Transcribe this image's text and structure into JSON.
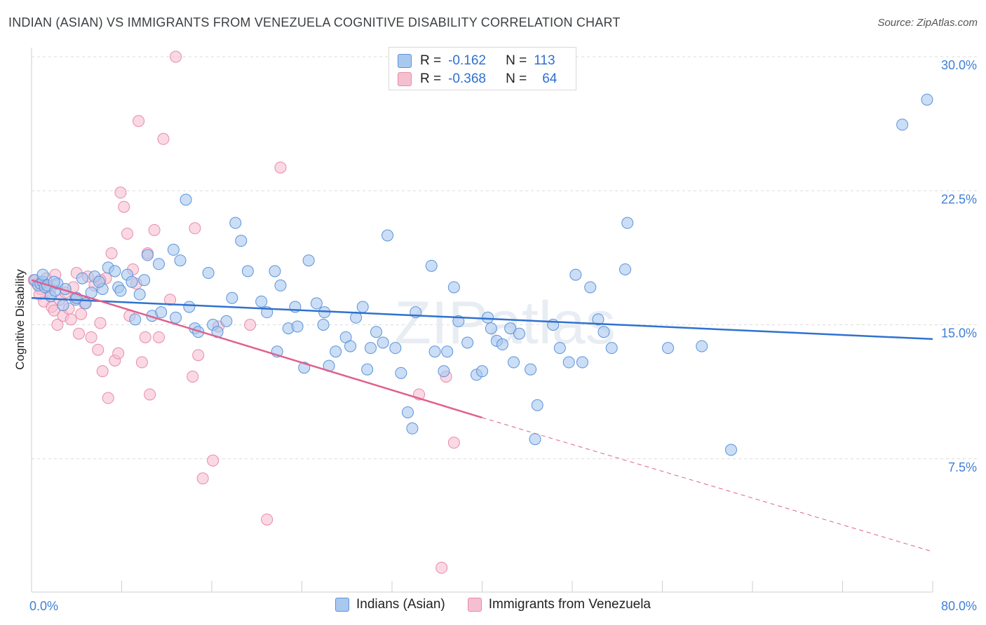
{
  "title": "INDIAN (ASIAN) VS IMMIGRANTS FROM VENEZUELA COGNITIVE DISABILITY CORRELATION CHART",
  "source": "Source: ZipAtlas.com",
  "watermark": "ZIPatlas",
  "legend_top": {
    "rows": [
      {
        "r_label": "R =",
        "r_value": "-0.162",
        "n_label": "N =",
        "n_value": "113"
      },
      {
        "r_label": "R =",
        "r_value": "-0.368",
        "n_label": "N =",
        "n_value": "64"
      }
    ]
  },
  "colors": {
    "blue_fill": "#a9c8ef",
    "blue_stroke": "#5b93db",
    "blue_line": "#2f72cf",
    "pink_fill": "#f6bfd0",
    "pink_stroke": "#e88aaa",
    "pink_line": "#e0608c",
    "grid": "#dcdcdc",
    "tick_text": "#3f7fd6"
  },
  "chart_data": {
    "type": "scatter",
    "title": "INDIAN (ASIAN) VS IMMIGRANTS FROM VENEZUELA COGNITIVE DISABILITY CORRELATION CHART",
    "xlabel": "",
    "ylabel": "Cognitive Disability",
    "xlim": [
      0,
      80
    ],
    "ylim": [
      0,
      30
    ],
    "x_tick_labels": [
      "0.0%",
      "80.0%"
    ],
    "y_ticks": [
      7.5,
      15.0,
      22.5,
      30.0
    ],
    "y_tick_labels": [
      "7.5%",
      "15.0%",
      "22.5%",
      "30.0%"
    ],
    "legend_position": "top-center",
    "series": [
      {
        "name": "Indians (Asian)",
        "r": -0.162,
        "n": 113,
        "trend": {
          "x": [
            0,
            80
          ],
          "y": [
            16.5,
            14.2
          ],
          "dashed_beyond": null
        },
        "points": [
          [
            0.3,
            17.5
          ],
          [
            0.6,
            17.2
          ],
          [
            0.8,
            17.3
          ],
          [
            1.0,
            17.4
          ],
          [
            1.2,
            17.1
          ],
          [
            1.4,
            17.2
          ],
          [
            1.7,
            16.6
          ],
          [
            2.1,
            16.9
          ],
          [
            2.3,
            17.3
          ],
          [
            2.8,
            16.1
          ],
          [
            3.0,
            17.0
          ],
          [
            3.9,
            16.4
          ],
          [
            4.5,
            17.6
          ],
          [
            4.8,
            16.2
          ],
          [
            5.3,
            16.8
          ],
          [
            5.6,
            17.7
          ],
          [
            6.3,
            17.0
          ],
          [
            6.8,
            18.2
          ],
          [
            7.4,
            18.0
          ],
          [
            7.7,
            17.1
          ],
          [
            7.9,
            16.9
          ],
          [
            8.5,
            17.8
          ],
          [
            8.9,
            17.4
          ],
          [
            9.6,
            16.7
          ],
          [
            10.0,
            17.5
          ],
          [
            10.3,
            18.9
          ],
          [
            9.2,
            15.3
          ],
          [
            10.7,
            15.5
          ],
          [
            11.3,
            18.4
          ],
          [
            11.5,
            15.7
          ],
          [
            12.8,
            15.4
          ],
          [
            13.2,
            18.6
          ],
          [
            12.6,
            19.2
          ],
          [
            13.7,
            22.0
          ],
          [
            14.5,
            14.8
          ],
          [
            14.8,
            14.6
          ],
          [
            16.1,
            15.0
          ],
          [
            16.5,
            14.6
          ],
          [
            17.3,
            15.2
          ],
          [
            17.8,
            16.5
          ],
          [
            18.1,
            20.7
          ],
          [
            18.6,
            19.7
          ],
          [
            19.2,
            18.0
          ],
          [
            20.4,
            16.3
          ],
          [
            20.9,
            15.7
          ],
          [
            21.6,
            18.0
          ],
          [
            22.1,
            17.2
          ],
          [
            21.8,
            13.5
          ],
          [
            22.8,
            14.8
          ],
          [
            23.6,
            14.9
          ],
          [
            24.2,
            12.6
          ],
          [
            23.4,
            16.0
          ],
          [
            24.6,
            18.6
          ],
          [
            25.3,
            16.2
          ],
          [
            25.9,
            15.0
          ],
          [
            26.4,
            12.7
          ],
          [
            27.0,
            13.5
          ],
          [
            27.9,
            14.3
          ],
          [
            28.3,
            13.8
          ],
          [
            29.4,
            16.0
          ],
          [
            28.8,
            15.4
          ],
          [
            30.1,
            13.7
          ],
          [
            29.8,
            12.5
          ],
          [
            30.6,
            14.6
          ],
          [
            31.2,
            14.0
          ],
          [
            31.6,
            20.0
          ],
          [
            32.3,
            13.7
          ],
          [
            32.8,
            12.3
          ],
          [
            33.4,
            10.1
          ],
          [
            33.8,
            9.2
          ],
          [
            34.1,
            15.7
          ],
          [
            35.5,
            18.3
          ],
          [
            35.8,
            13.5
          ],
          [
            36.6,
            12.4
          ],
          [
            36.9,
            13.5
          ],
          [
            37.5,
            17.1
          ],
          [
            37.9,
            15.2
          ],
          [
            38.7,
            14.0
          ],
          [
            39.5,
            12.2
          ],
          [
            40.0,
            12.4
          ],
          [
            40.8,
            14.8
          ],
          [
            41.3,
            14.1
          ],
          [
            41.8,
            13.9
          ],
          [
            42.5,
            14.8
          ],
          [
            42.8,
            12.9
          ],
          [
            43.3,
            14.5
          ],
          [
            44.3,
            12.5
          ],
          [
            44.9,
            10.5
          ],
          [
            44.7,
            8.6
          ],
          [
            46.3,
            15.0
          ],
          [
            46.9,
            13.7
          ],
          [
            47.7,
            12.9
          ],
          [
            48.3,
            17.8
          ],
          [
            48.9,
            12.9
          ],
          [
            49.6,
            17.1
          ],
          [
            50.3,
            15.3
          ],
          [
            50.8,
            14.6
          ],
          [
            51.5,
            13.7
          ],
          [
            52.7,
            18.1
          ],
          [
            52.9,
            20.7
          ],
          [
            56.5,
            13.7
          ],
          [
            59.5,
            13.8
          ],
          [
            62.1,
            8.0
          ],
          [
            77.3,
            26.2
          ],
          [
            79.5,
            27.6
          ],
          [
            1.0,
            17.8
          ],
          [
            2.0,
            17.4
          ],
          [
            4.0,
            16.5
          ],
          [
            6.0,
            17.4
          ],
          [
            14.0,
            16.0
          ],
          [
            26.0,
            15.7
          ],
          [
            15.7,
            17.9
          ],
          [
            40.5,
            15.4
          ]
        ]
      },
      {
        "name": "Immigrants from Venezuela",
        "r": -0.368,
        "n": 64,
        "trend": {
          "x": [
            0,
            40
          ],
          "y": [
            17.5,
            9.8
          ],
          "dashed_beyond": [
            80,
            2.3
          ]
        },
        "points": [
          [
            0.2,
            17.5
          ],
          [
            0.5,
            17.3
          ],
          [
            0.8,
            17.0
          ],
          [
            1.1,
            16.3
          ],
          [
            1.3,
            17.6
          ],
          [
            1.6,
            16.9
          ],
          [
            1.8,
            16.0
          ],
          [
            2.0,
            15.8
          ],
          [
            2.3,
            15.0
          ],
          [
            2.5,
            16.4
          ],
          [
            2.8,
            15.5
          ],
          [
            3.0,
            16.8
          ],
          [
            3.3,
            15.9
          ],
          [
            3.5,
            15.3
          ],
          [
            3.7,
            17.1
          ],
          [
            3.9,
            16.5
          ],
          [
            4.2,
            14.5
          ],
          [
            4.4,
            15.6
          ],
          [
            4.7,
            16.2
          ],
          [
            5.0,
            17.7
          ],
          [
            5.3,
            14.3
          ],
          [
            5.6,
            17.2
          ],
          [
            5.9,
            13.6
          ],
          [
            6.1,
            15.1
          ],
          [
            6.3,
            12.4
          ],
          [
            6.6,
            17.6
          ],
          [
            6.8,
            10.9
          ],
          [
            7.1,
            19.0
          ],
          [
            7.4,
            13.0
          ],
          [
            7.7,
            13.4
          ],
          [
            7.9,
            22.4
          ],
          [
            8.2,
            21.6
          ],
          [
            8.5,
            20.1
          ],
          [
            8.7,
            15.5
          ],
          [
            9.0,
            18.1
          ],
          [
            9.3,
            17.3
          ],
          [
            9.5,
            26.4
          ],
          [
            9.8,
            12.9
          ],
          [
            10.1,
            14.3
          ],
          [
            10.3,
            19.0
          ],
          [
            10.5,
            11.1
          ],
          [
            10.9,
            20.3
          ],
          [
            11.3,
            14.3
          ],
          [
            11.7,
            25.4
          ],
          [
            12.8,
            30.0
          ],
          [
            14.3,
            12.1
          ],
          [
            14.5,
            20.4
          ],
          [
            14.8,
            13.3
          ],
          [
            15.2,
            6.4
          ],
          [
            16.1,
            7.4
          ],
          [
            16.6,
            14.9
          ],
          [
            19.4,
            15.0
          ],
          [
            20.9,
            4.1
          ],
          [
            22.1,
            23.8
          ],
          [
            34.4,
            11.1
          ],
          [
            36.8,
            12.1
          ],
          [
            37.5,
            8.4
          ],
          [
            36.4,
            1.4
          ],
          [
            2.1,
            17.8
          ],
          [
            4.0,
            17.9
          ],
          [
            6.1,
            17.5
          ],
          [
            0.7,
            16.7
          ],
          [
            1.4,
            17.1
          ],
          [
            12.3,
            16.4
          ]
        ]
      }
    ]
  },
  "legend_bottom": {
    "items": [
      {
        "label": "Indians (Asian)"
      },
      {
        "label": "Immigrants from Venezuela"
      }
    ]
  }
}
